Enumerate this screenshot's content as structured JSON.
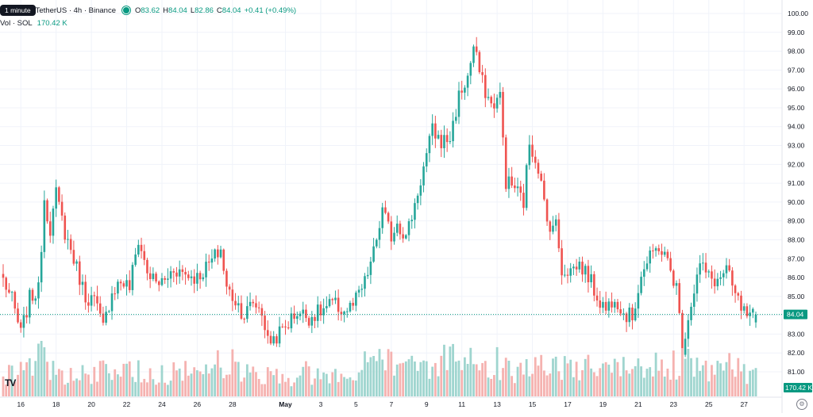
{
  "legend": {
    "tooltip": "1 minute",
    "symbol_rest": "TetherUS · 4h · Binance",
    "o_label": "O",
    "o_value": "83.62",
    "h_label": "H",
    "h_value": "84.04",
    "l_label": "L",
    "l_value": "82.86",
    "c_label": "C",
    "c_value": "84.04",
    "change": "+0.41 (+0.49%)",
    "vol_label": "Vol · SOL",
    "vol_value": "170.42 K"
  },
  "logo_text": "TV",
  "colors": {
    "up": "#26a69a",
    "down": "#ef5350",
    "up_vol": "#9fd5cf",
    "down_vol": "#f5b2b0",
    "grid": "#f0f3fa",
    "axis_text": "#131722",
    "price_line": "#089981"
  },
  "chart_data": {
    "type": "candlestick",
    "price_axis": {
      "min": 81,
      "max": 100,
      "ticks": [
        "100.00",
        "99.00",
        "98.00",
        "97.00",
        "96.00",
        "95.00",
        "94.00",
        "93.00",
        "92.00",
        "91.00",
        "90.00",
        "89.00",
        "88.00",
        "87.00",
        "86.00",
        "85.00",
        "84.00",
        "83.00",
        "82.00",
        "81.00"
      ]
    },
    "x_ticks": [
      {
        "label": "16",
        "i": 6,
        "bold": false
      },
      {
        "label": "18",
        "i": 18,
        "bold": false
      },
      {
        "label": "20",
        "i": 30,
        "bold": false
      },
      {
        "label": "22",
        "i": 42,
        "bold": false
      },
      {
        "label": "24",
        "i": 54,
        "bold": false
      },
      {
        "label": "26",
        "i": 66,
        "bold": false
      },
      {
        "label": "28",
        "i": 78,
        "bold": false
      },
      {
        "label": "May",
        "i": 96,
        "bold": true
      },
      {
        "label": "3",
        "i": 108,
        "bold": false
      },
      {
        "label": "5",
        "i": 120,
        "bold": false
      },
      {
        "label": "7",
        "i": 132,
        "bold": false
      },
      {
        "label": "9",
        "i": 144,
        "bold": false
      },
      {
        "label": "11",
        "i": 156,
        "bold": false
      },
      {
        "label": "13",
        "i": 168,
        "bold": false
      },
      {
        "label": "15",
        "i": 180,
        "bold": false
      },
      {
        "label": "17",
        "i": 192,
        "bold": false
      },
      {
        "label": "19",
        "i": 204,
        "bold": false
      },
      {
        "label": "21",
        "i": 216,
        "bold": false
      },
      {
        "label": "23",
        "i": 228,
        "bold": false
      },
      {
        "label": "25",
        "i": 240,
        "bold": false
      },
      {
        "label": "27",
        "i": 252,
        "bold": false
      }
    ],
    "price_anchors": [
      [
        0,
        85.9
      ],
      [
        3,
        84.8
      ],
      [
        6,
        83.0
      ],
      [
        9,
        84.9
      ],
      [
        12,
        85.3
      ],
      [
        14,
        90.2
      ],
      [
        16,
        88.6
      ],
      [
        18,
        90.4
      ],
      [
        21,
        88.4
      ],
      [
        24,
        87.0
      ],
      [
        28,
        85.0
      ],
      [
        31,
        84.8
      ],
      [
        34,
        83.3
      ],
      [
        37,
        85.3
      ],
      [
        40,
        85.8
      ],
      [
        43,
        85.5
      ],
      [
        46,
        88.0
      ],
      [
        49,
        86.3
      ],
      [
        52,
        85.7
      ],
      [
        55,
        85.8
      ],
      [
        58,
        86.5
      ],
      [
        62,
        86.2
      ],
      [
        66,
        86.0
      ],
      [
        70,
        86.7
      ],
      [
        74,
        87.5
      ],
      [
        76,
        85.4
      ],
      [
        79,
        84.8
      ],
      [
        82,
        84.0
      ],
      [
        85,
        84.7
      ],
      [
        88,
        84.2
      ],
      [
        90,
        82.6
      ],
      [
        93,
        82.9
      ],
      [
        96,
        83.4
      ],
      [
        100,
        84.2
      ],
      [
        104,
        83.9
      ],
      [
        108,
        84.2
      ],
      [
        112,
        84.6
      ],
      [
        116,
        84.2
      ],
      [
        119,
        84.5
      ],
      [
        123,
        85.7
      ],
      [
        126,
        87.3
      ],
      [
        129,
        89.5
      ],
      [
        132,
        88.2
      ],
      [
        134,
        89.0
      ],
      [
        137,
        88.1
      ],
      [
        140,
        89.9
      ],
      [
        143,
        91.8
      ],
      [
        146,
        93.8
      ],
      [
        149,
        93.2
      ],
      [
        152,
        93.4
      ],
      [
        155,
        95.6
      ],
      [
        158,
        96.6
      ],
      [
        160,
        98.2
      ],
      [
        163,
        96.3
      ],
      [
        166,
        95.1
      ],
      [
        169,
        95.6
      ],
      [
        171,
        91.1
      ],
      [
        174,
        90.8
      ],
      [
        177,
        90.0
      ],
      [
        179,
        93.2
      ],
      [
        182,
        91.9
      ],
      [
        185,
        88.9
      ],
      [
        188,
        88.8
      ],
      [
        190,
        86.4
      ],
      [
        193,
        86.4
      ],
      [
        196,
        86.7
      ],
      [
        199,
        86.1
      ],
      [
        202,
        85.0
      ],
      [
        205,
        84.3
      ],
      [
        208,
        85.1
      ],
      [
        211,
        84.1
      ],
      [
        214,
        83.9
      ],
      [
        217,
        86.2
      ],
      [
        220,
        87.0
      ],
      [
        223,
        87.7
      ],
      [
        226,
        86.8
      ],
      [
        229,
        85.5
      ],
      [
        231,
        82.3
      ],
      [
        234,
        84.7
      ],
      [
        237,
        86.7
      ],
      [
        240,
        86.0
      ],
      [
        243,
        85.8
      ],
      [
        246,
        86.4
      ],
      [
        249,
        85.0
      ],
      [
        252,
        84.1
      ],
      [
        254,
        83.8
      ],
      [
        256,
        84.04
      ]
    ],
    "volume_anchors": [
      [
        0,
        120
      ],
      [
        6,
        170
      ],
      [
        12,
        300
      ],
      [
        18,
        150
      ],
      [
        24,
        140
      ],
      [
        30,
        130
      ],
      [
        36,
        170
      ],
      [
        42,
        150
      ],
      [
        48,
        160
      ],
      [
        54,
        140
      ],
      [
        60,
        150
      ],
      [
        66,
        170
      ],
      [
        72,
        200
      ],
      [
        78,
        210
      ],
      [
        84,
        130
      ],
      [
        90,
        150
      ],
      [
        96,
        110
      ],
      [
        102,
        160
      ],
      [
        108,
        130
      ],
      [
        114,
        120
      ],
      [
        120,
        160
      ],
      [
        126,
        230
      ],
      [
        132,
        240
      ],
      [
        138,
        230
      ],
      [
        144,
        200
      ],
      [
        150,
        230
      ],
      [
        156,
        260
      ],
      [
        162,
        250
      ],
      [
        168,
        180
      ],
      [
        174,
        160
      ],
      [
        180,
        210
      ],
      [
        186,
        200
      ],
      [
        192,
        170
      ],
      [
        198,
        190
      ],
      [
        204,
        170
      ],
      [
        210,
        160
      ],
      [
        216,
        200
      ],
      [
        222,
        190
      ],
      [
        228,
        210
      ],
      [
        234,
        200
      ],
      [
        240,
        160
      ],
      [
        246,
        190
      ],
      [
        252,
        150
      ],
      [
        256,
        170
      ]
    ]
  }
}
